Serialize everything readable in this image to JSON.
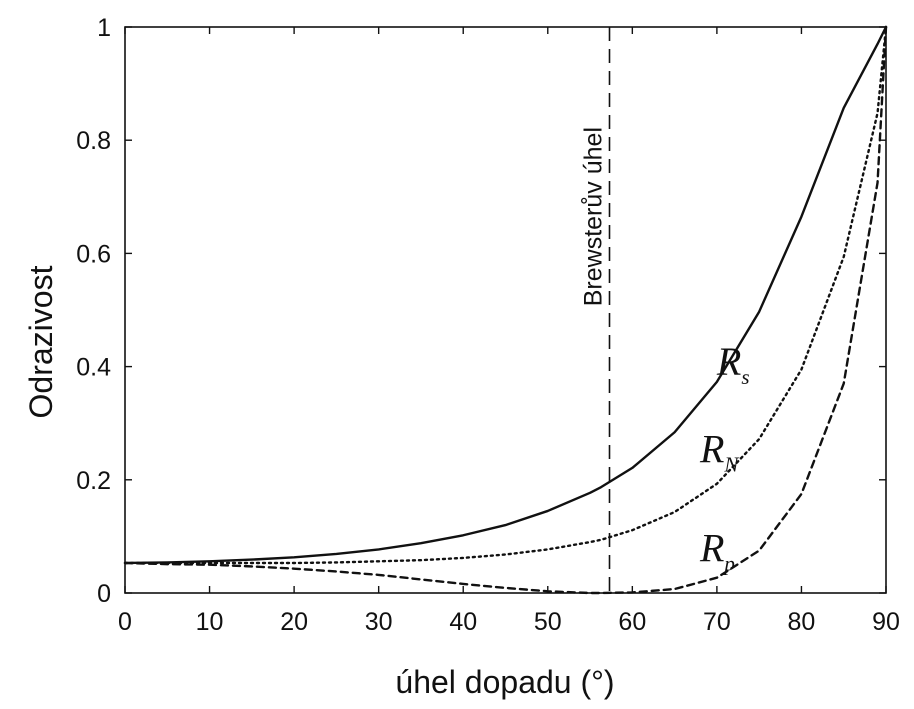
{
  "chart_data": {
    "type": "line",
    "xlabel": "úhel dopadu (°)",
    "ylabel": "Odrazivost",
    "xlim": [
      0,
      90
    ],
    "ylim": [
      0,
      1
    ],
    "x_ticks": [
      0,
      10,
      20,
      30,
      40,
      50,
      60,
      70,
      80,
      90
    ],
    "y_ticks": [
      0,
      0.2,
      0.4,
      0.6,
      0.8,
      1
    ],
    "y_tick_labels": [
      "0",
      "0.2",
      "0.4",
      "0.6",
      "0.8",
      "1"
    ],
    "grid": false,
    "x": [
      0,
      5,
      10,
      15,
      20,
      25,
      30,
      35,
      40,
      45,
      50,
      55,
      56.3,
      60,
      65,
      70,
      75,
      80,
      85,
      89,
      90
    ],
    "series": [
      {
        "name_main": "R",
        "name_sub": "s",
        "line_style": "solid",
        "label_at": [
          70,
          0.41
        ],
        "values": [
          0.053,
          0.054,
          0.056,
          0.059,
          0.063,
          0.069,
          0.077,
          0.088,
          0.102,
          0.12,
          0.145,
          0.177,
          0.187,
          0.221,
          0.284,
          0.373,
          0.497,
          0.665,
          0.857,
          0.97,
          1.0
        ]
      },
      {
        "name_main": "R",
        "name_sub": "N",
        "line_style": "dotted",
        "label_at": [
          68,
          0.255
        ],
        "values": [
          0.053,
          0.053,
          0.053,
          0.053,
          0.053,
          0.054,
          0.056,
          0.058,
          0.062,
          0.068,
          0.077,
          0.09,
          0.094,
          0.111,
          0.143,
          0.193,
          0.272,
          0.395,
          0.594,
          0.848,
          1.0
        ]
      },
      {
        "name_main": "R",
        "name_sub": "p",
        "line_style": "dashed",
        "label_at": [
          68,
          0.08
        ],
        "values": [
          0.053,
          0.051,
          0.05,
          0.047,
          0.043,
          0.038,
          0.032,
          0.024,
          0.016,
          0.009,
          0.003,
          0.0,
          0.0,
          0.001,
          0.007,
          0.027,
          0.075,
          0.175,
          0.37,
          0.725,
          1.0
        ]
      }
    ],
    "annotations": [
      {
        "text": "Brewsterův úhel",
        "x": 57.3,
        "line_style": "dashed",
        "orientation": "vertical"
      }
    ]
  }
}
